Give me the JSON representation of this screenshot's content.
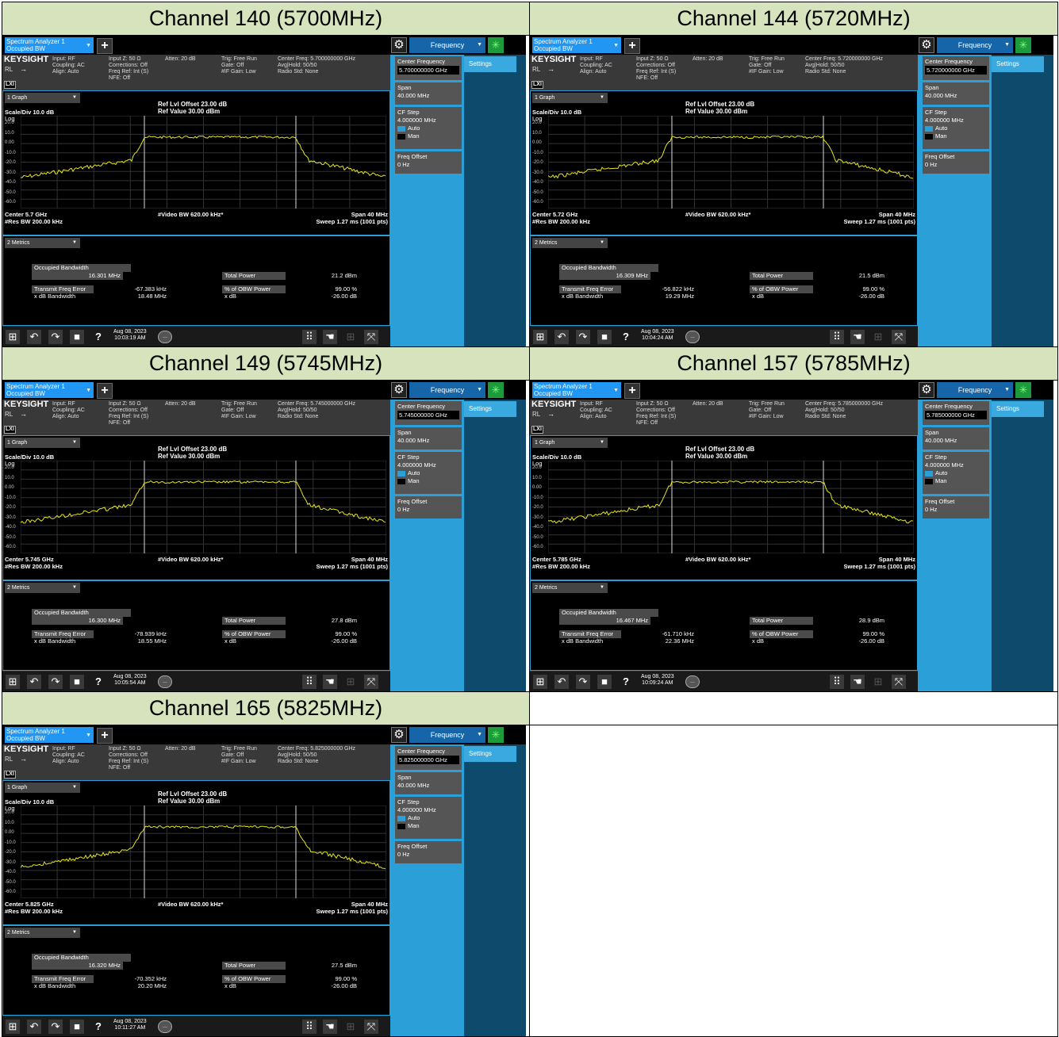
{
  "common": {
    "tab_line1": "Spectrum Analyzer 1",
    "tab_line2": "Occupied BW",
    "freq_tab": "Frequency",
    "settings": "Settings",
    "logo": "KEYSIGHT",
    "rl": "RL",
    "lxi": "LXI",
    "info_col1": "Input: RF\nCoupling: AC\nAlign: Auto",
    "info_col2": "Input Z: 50 Ω\nCorrections: Off\nFreq Ref: Int (S)\nNFE: Off",
    "info_col3": "Atten: 20 dB",
    "info_col4": "Trig: Free Run\nGate: Off\n#IF Gain: Low",
    "graph_dd": "1 Graph",
    "ref_offset": "Ref Lvl Offset 23.00 dB",
    "ref_value": "Ref Value 30.00 dBm",
    "scale": "Scale/Div 10.0 dB",
    "log": "Log",
    "yticks": [
      "20.0",
      "10.0",
      "0.00",
      "-10.0",
      "-20.0",
      "-30.0",
      "-40.0",
      "-50.0",
      "-60.0"
    ],
    "res_bw": "#Res BW 200.00 kHz",
    "video_bw": "#Video BW 620.00 kHz*",
    "span_label": "Span 40 MHz",
    "sweep": "Sweep 1.27 ms (1001 pts)",
    "metrics_dd": "2 Metrics",
    "m_obw": "Occupied Bandwidth",
    "m_tfe": "Transmit Freq Error",
    "m_xdbbw": "x dB Bandwidth",
    "m_tp": "Total Power",
    "m_pct": "% of OBW Power",
    "m_xdb": "x dB",
    "pct_val": "99.00 %",
    "xdb_val": "-26.00 dB",
    "rp_cf": "Center Frequency",
    "rp_span": "Span",
    "rp_span_val": "40.000 MHz",
    "rp_cfstep": "CF Step",
    "rp_cfstep_val": "4.000000 MHz",
    "rp_auto": "Auto",
    "rp_man": "Man",
    "rp_fo": "Freq Offset",
    "rp_fo_val": "0 Hz",
    "date": "Aug 08, 2023",
    "trace_color": "#e6e619"
  },
  "panels": [
    {
      "title": "Channel 140 (5700MHz)",
      "info_col5": "Center Freq: 5.700000000 GHz\nAvg|Hold: 50/50\nRadio Std: None",
      "cf_value": "5.700000000 GHz",
      "center": "Center 5.7 GHz",
      "obw": "16.301 MHz",
      "tfe": "-67.383 kHz",
      "xdbbw": "18.48 MHz",
      "tp": "21.2 dBm",
      "time": "10:03:19 AM"
    },
    {
      "title": "Channel 144 (5720MHz)",
      "info_col5": "Center Freq: 5.720000000 GHz\nAvg|Hold: 50/50\nRadio Std: None",
      "cf_value": "5.720000000 GHz",
      "center": "Center 5.72 GHz",
      "obw": "16.309 MHz",
      "tfe": "-56.822 kHz",
      "xdbbw": "19.29 MHz",
      "tp": "21.5 dBm",
      "time": "10:04:24 AM"
    },
    {
      "title": "Channel 149 (5745MHz)",
      "info_col5": "Center Freq: 5.745000000 GHz\nAvg|Hold: 50/50\nRadio Std: None",
      "cf_value": "5.745000000 GHz",
      "center": "Center 5.745 GHz",
      "obw": "16.300 MHz",
      "tfe": "-78.939 kHz",
      "xdbbw": "18.55 MHz",
      "tp": "27.8 dBm",
      "time": "10:05:54 AM"
    },
    {
      "title": "Channel 157 (5785MHz)",
      "info_col5": "Center Freq: 5.785000000 GHz\nAvg|Hold: 50/50\nRadio Std: None",
      "cf_value": "5.785000000 GHz",
      "center": "Center 5.785 GHz",
      "obw": "16.467 MHz",
      "tfe": "-61.710 kHz",
      "xdbbw": "22.36 MHz",
      "tp": "28.9 dBm",
      "time": "10:09:24 AM"
    },
    {
      "title": "Channel 165 (5825MHz)",
      "info_col5": "Center Freq: 5.825000000 GHz\nAvg|Hold: 50/50\nRadio Std: None",
      "cf_value": "5.825000000 GHz",
      "center": "Center 5.825 GHz",
      "obw": "16.320 MHz",
      "tfe": "-70.352 kHz",
      "xdbbw": "20.20 MHz",
      "tp": "27.5 dBm",
      "time": "10:11:27 AM"
    }
  ]
}
